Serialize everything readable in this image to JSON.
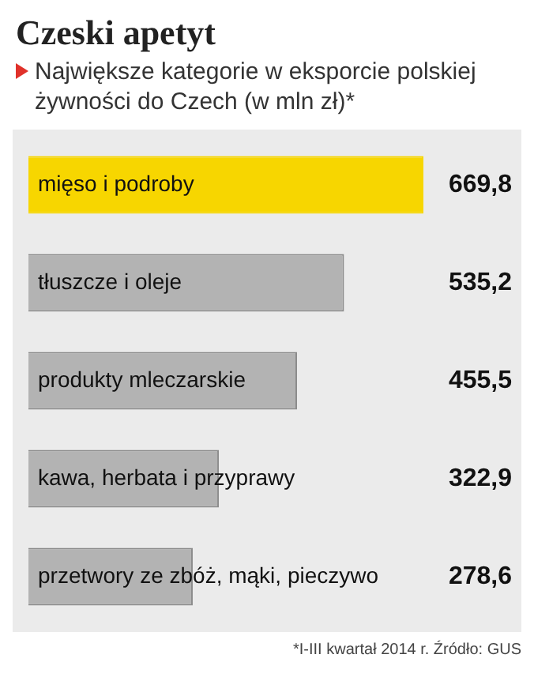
{
  "chart_data": {
    "type": "bar",
    "orientation": "horizontal",
    "title": "Czeski apetyt",
    "subtitle": "Największe kategorie w eksporcie polskiej żywności do Czech (w mln zł)*",
    "categories": [
      "mięso i podroby",
      "tłuszcze i oleje",
      "produkty mleczarskie",
      "kawa, herbata i przyprawy",
      "przetwory ze zbóż, mąki, pieczywo"
    ],
    "values": [
      669.8,
      535.2,
      455.5,
      322.9,
      278.6
    ],
    "value_labels": [
      "669,8",
      "535,2",
      "455,5",
      "322,9",
      "278,6"
    ],
    "colors": [
      "#f7d600",
      "#b3b3b3",
      "#b3b3b3",
      "#b3b3b3",
      "#b3b3b3"
    ],
    "annotations": [
      "*I-III kwartał 2014 r. Źródło: GUS"
    ]
  }
}
